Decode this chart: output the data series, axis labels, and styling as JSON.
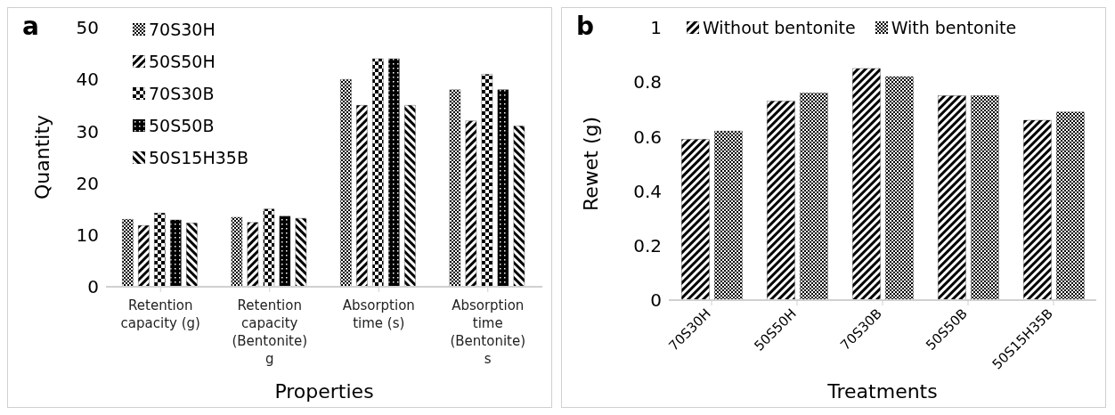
{
  "chart_data": [
    {
      "type": "bar",
      "title": "a",
      "xlabel": "Properties",
      "ylabel": "Quantity",
      "categories": [
        "Retention capacity (g)",
        "Retention capacity (Bentonite) g",
        "Absorption time (s)",
        "Absorption time (Bentonite) s"
      ],
      "series": [
        {
          "name": "70S30H",
          "color": "#000000",
          "values": [
            13,
            13.4,
            40,
            38
          ]
        },
        {
          "name": "50S50H",
          "color": "#000000",
          "values": [
            11.8,
            12.4,
            35,
            32
          ]
        },
        {
          "name": "70S30B",
          "color": "#000000",
          "values": [
            14.2,
            15,
            44,
            41
          ]
        },
        {
          "name": "50S50B",
          "color": "#000000",
          "values": [
            12.9,
            13.6,
            44,
            38
          ]
        },
        {
          "name": "50S15H35B",
          "color": "#000000",
          "values": [
            12.3,
            13.2,
            35,
            31
          ]
        }
      ],
      "ylim": [
        0,
        50
      ],
      "yticks": [
        0,
        10,
        20,
        30,
        40,
        50
      ],
      "grid": false,
      "legend": "top left"
    },
    {
      "type": "bar",
      "title": "b",
      "xlabel": "Treatments",
      "ylabel": "Rewet (g)",
      "categories": [
        "70S30H",
        "50S50H",
        "70S30B",
        "50S50B",
        "50S15H35B"
      ],
      "series": [
        {
          "name": "Without bentonite",
          "color": "#000000",
          "values": [
            0.59,
            0.73,
            0.85,
            0.75,
            0.66
          ]
        },
        {
          "name": "With bentonite",
          "color": "#000000",
          "values": [
            0.62,
            0.76,
            0.82,
            0.75,
            0.69
          ]
        }
      ],
      "ylim": [
        0,
        1
      ],
      "yticks": [
        0,
        0.2,
        0.4,
        0.6,
        0.8,
        1
      ],
      "grid": false,
      "legend": "top"
    }
  ]
}
